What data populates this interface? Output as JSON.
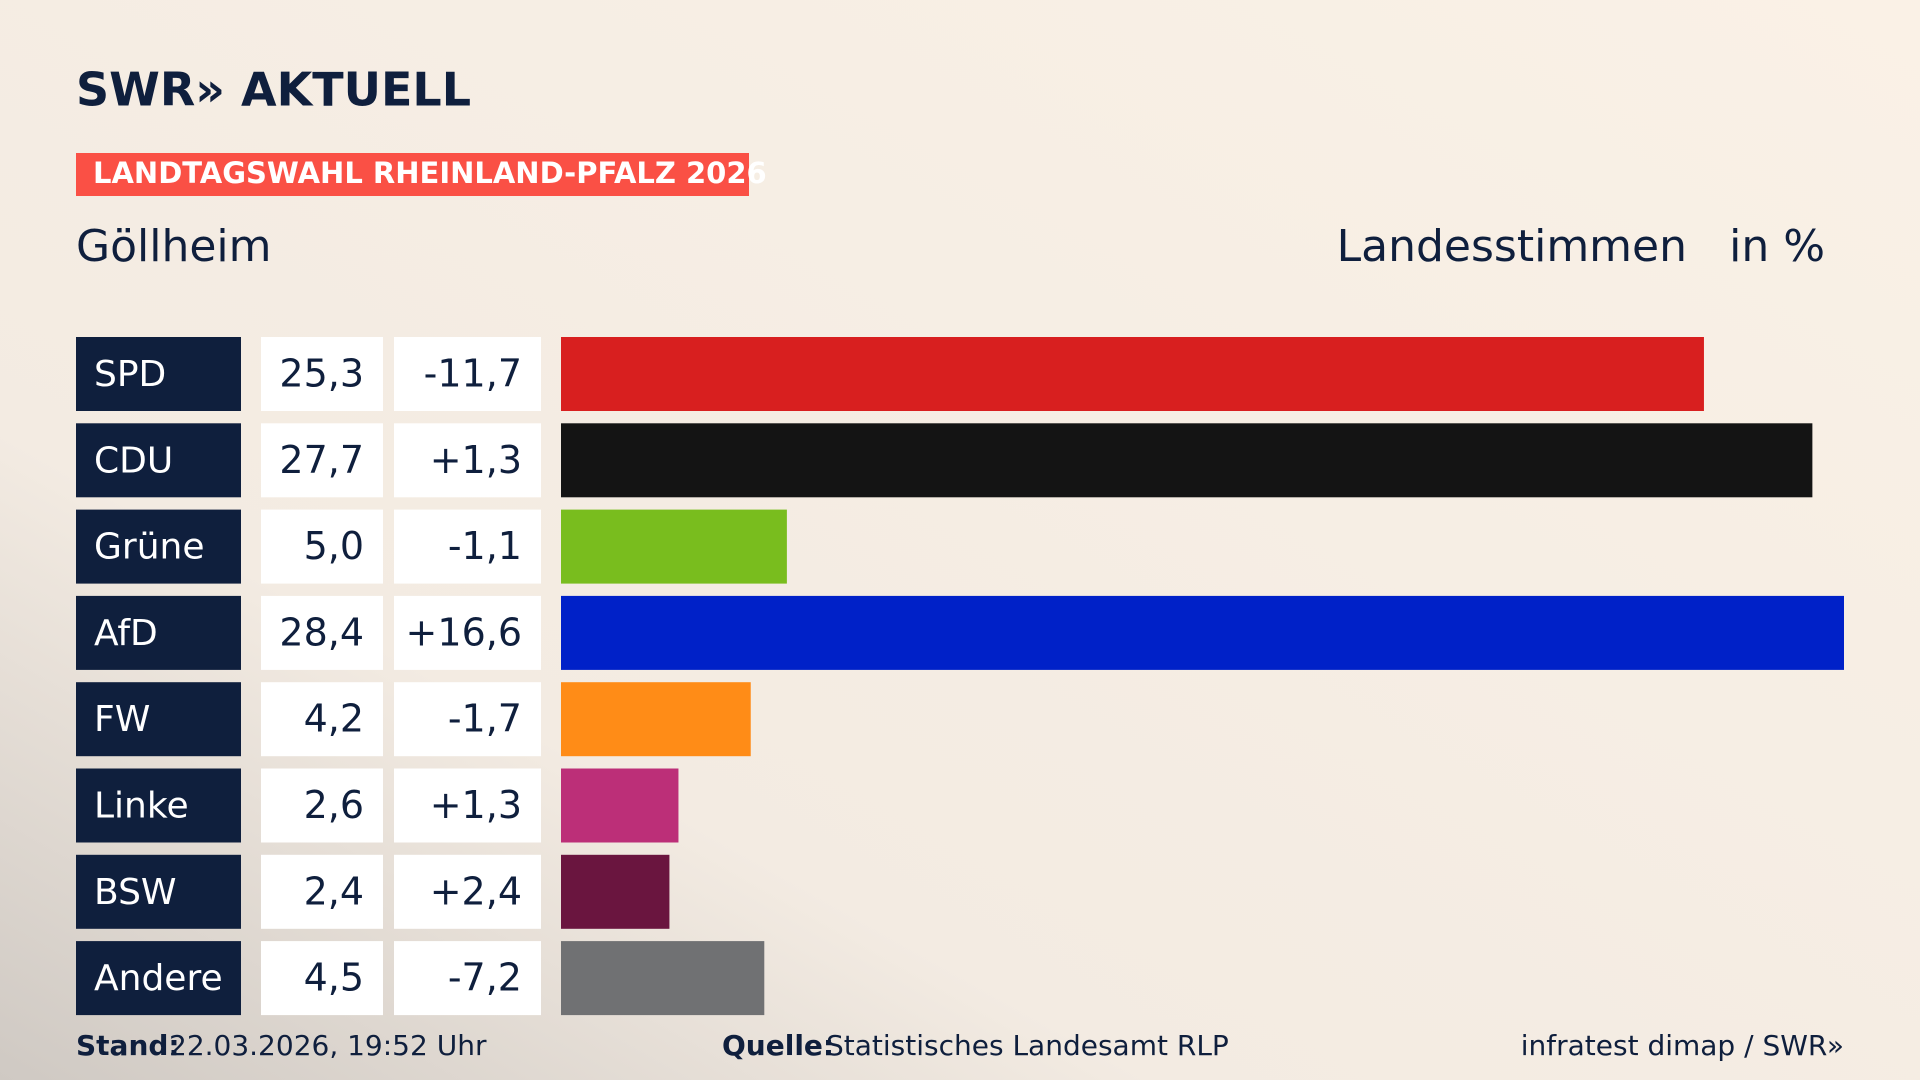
{
  "logo": "SWR» AKTUELL",
  "banner": "LANDTAGSWAHL RHEINLAND-PFALZ 2026",
  "chart_data": {
    "type": "bar",
    "title": "Göllheim",
    "measure": "Landesstimmen",
    "unit": "in %",
    "categories": [
      "SPD",
      "CDU",
      "Grüne",
      "AfD",
      "FW",
      "Linke",
      "BSW",
      "Andere"
    ],
    "values": [
      25.3,
      27.7,
      5.0,
      28.4,
      4.2,
      2.6,
      2.4,
      4.5
    ],
    "value_labels": [
      "25,3",
      "27,7",
      "5,0",
      "28,4",
      "4,2",
      "2,6",
      "2,4",
      "4,5"
    ],
    "changes": [
      "-11,7",
      "+1,3",
      "-1,1",
      "+16,6",
      "-1,7",
      "+1,3",
      "+2,4",
      "-7,2"
    ],
    "colors": [
      "#d81f1f",
      "#141414",
      "#79bd1e",
      "#0021c8",
      "#ff8c17",
      "#bc2f78",
      "#6a153f",
      "#707173"
    ],
    "xlim": [
      0,
      28.4
    ]
  },
  "footer": {
    "stand_label": "Stand:",
    "stand": "22.03.2026, 19:52 Uhr",
    "source_label": "Quelle:",
    "source": "Statistisches Landesamt RLP",
    "credit": "infratest dimap / SWR»"
  }
}
